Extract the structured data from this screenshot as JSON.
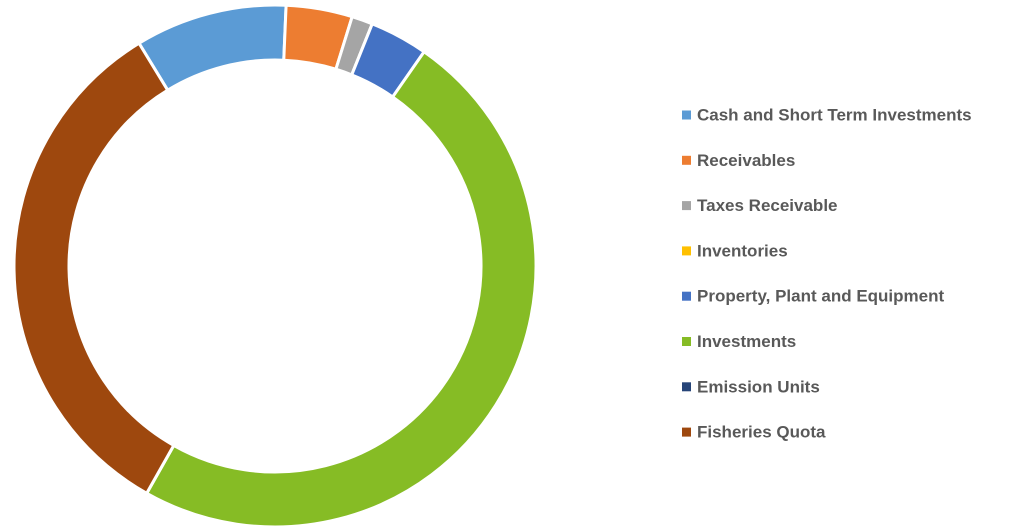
{
  "chart_data": {
    "type": "donut",
    "categories": [
      "Cash and Short Term Investments",
      "Receivables",
      "Taxes Receivable",
      "Inventories",
      "Property, Plant and Equipment",
      "Investments",
      "Emission Units",
      "Fisheries Quota"
    ],
    "values": [
      9.4,
      4.1,
      1.3,
      0,
      3.6,
      48.5,
      0,
      33.1
    ],
    "colors": [
      "#5b9bd5",
      "#ed7d31",
      "#a5a5a5",
      "#ffc000",
      "#4472c4",
      "#86bc25",
      "#264478",
      "#9e480e"
    ],
    "legend": "right"
  }
}
